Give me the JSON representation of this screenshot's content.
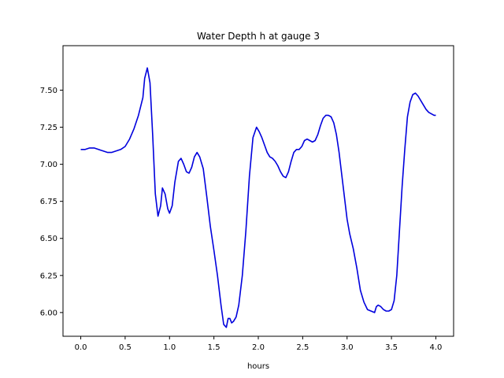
{
  "chart_data": {
    "type": "line",
    "title": "Water Depth h at gauge 3",
    "xlabel": "hours",
    "ylabel": "",
    "xlim": [
      -0.2,
      4.2
    ],
    "ylim": [
      5.84,
      7.8
    ],
    "x_ticks": [
      "0.0",
      "0.5",
      "1.0",
      "1.5",
      "2.0",
      "2.5",
      "3.0",
      "3.5",
      "4.0"
    ],
    "y_ticks": [
      "6.00",
      "6.25",
      "6.50",
      "6.75",
      "7.00",
      "7.25",
      "7.50"
    ],
    "grid": false,
    "legend": "none",
    "series": [
      {
        "color": "#0000dd",
        "x": [
          0.0,
          0.05,
          0.1,
          0.15,
          0.2,
          0.25,
          0.3,
          0.35,
          0.4,
          0.45,
          0.5,
          0.55,
          0.6,
          0.65,
          0.7,
          0.72,
          0.75,
          0.78,
          0.81,
          0.84,
          0.87,
          0.9,
          0.92,
          0.95,
          0.98,
          1.0,
          1.03,
          1.06,
          1.1,
          1.13,
          1.16,
          1.19,
          1.22,
          1.25,
          1.28,
          1.31,
          1.34,
          1.38,
          1.42,
          1.46,
          1.5,
          1.54,
          1.58,
          1.61,
          1.64,
          1.66,
          1.68,
          1.7,
          1.72,
          1.75,
          1.78,
          1.82,
          1.86,
          1.9,
          1.94,
          1.98,
          2.01,
          2.04,
          2.07,
          2.1,
          2.13,
          2.16,
          2.19,
          2.22,
          2.25,
          2.28,
          2.31,
          2.34,
          2.37,
          2.4,
          2.43,
          2.46,
          2.49,
          2.52,
          2.55,
          2.58,
          2.61,
          2.64,
          2.67,
          2.7,
          2.73,
          2.76,
          2.79,
          2.82,
          2.85,
          2.88,
          2.91,
          2.94,
          2.97,
          3.0,
          3.03,
          3.07,
          3.11,
          3.15,
          3.19,
          3.23,
          3.27,
          3.31,
          3.33,
          3.35,
          3.38,
          3.41,
          3.44,
          3.47,
          3.5,
          3.53,
          3.56,
          3.59,
          3.62,
          3.65,
          3.68,
          3.71,
          3.74,
          3.77,
          3.8,
          3.83,
          3.86,
          3.89,
          3.92,
          3.95,
          3.98,
          4.0
        ],
        "y": [
          7.1,
          7.1,
          7.11,
          7.11,
          7.1,
          7.09,
          7.08,
          7.08,
          7.09,
          7.1,
          7.12,
          7.17,
          7.24,
          7.33,
          7.45,
          7.58,
          7.65,
          7.55,
          7.2,
          6.8,
          6.65,
          6.72,
          6.84,
          6.8,
          6.7,
          6.67,
          6.72,
          6.88,
          7.02,
          7.04,
          7.0,
          6.95,
          6.94,
          6.98,
          7.05,
          7.08,
          7.05,
          6.97,
          6.78,
          6.58,
          6.42,
          6.25,
          6.05,
          5.92,
          5.9,
          5.96,
          5.96,
          5.93,
          5.94,
          5.97,
          6.05,
          6.25,
          6.55,
          6.92,
          7.18,
          7.25,
          7.22,
          7.18,
          7.13,
          7.08,
          7.05,
          7.04,
          7.02,
          6.99,
          6.95,
          6.92,
          6.91,
          6.95,
          7.02,
          7.08,
          7.1,
          7.1,
          7.12,
          7.16,
          7.17,
          7.16,
          7.15,
          7.16,
          7.2,
          7.26,
          7.31,
          7.33,
          7.33,
          7.32,
          7.28,
          7.2,
          7.08,
          6.93,
          6.78,
          6.63,
          6.53,
          6.43,
          6.3,
          6.15,
          6.07,
          6.02,
          6.01,
          6.0,
          6.04,
          6.05,
          6.04,
          6.02,
          6.01,
          6.01,
          6.02,
          6.08,
          6.25,
          6.55,
          6.85,
          7.1,
          7.32,
          7.42,
          7.47,
          7.48,
          7.46,
          7.43,
          7.4,
          7.37,
          7.35,
          7.34,
          7.33,
          7.33
        ]
      }
    ]
  }
}
